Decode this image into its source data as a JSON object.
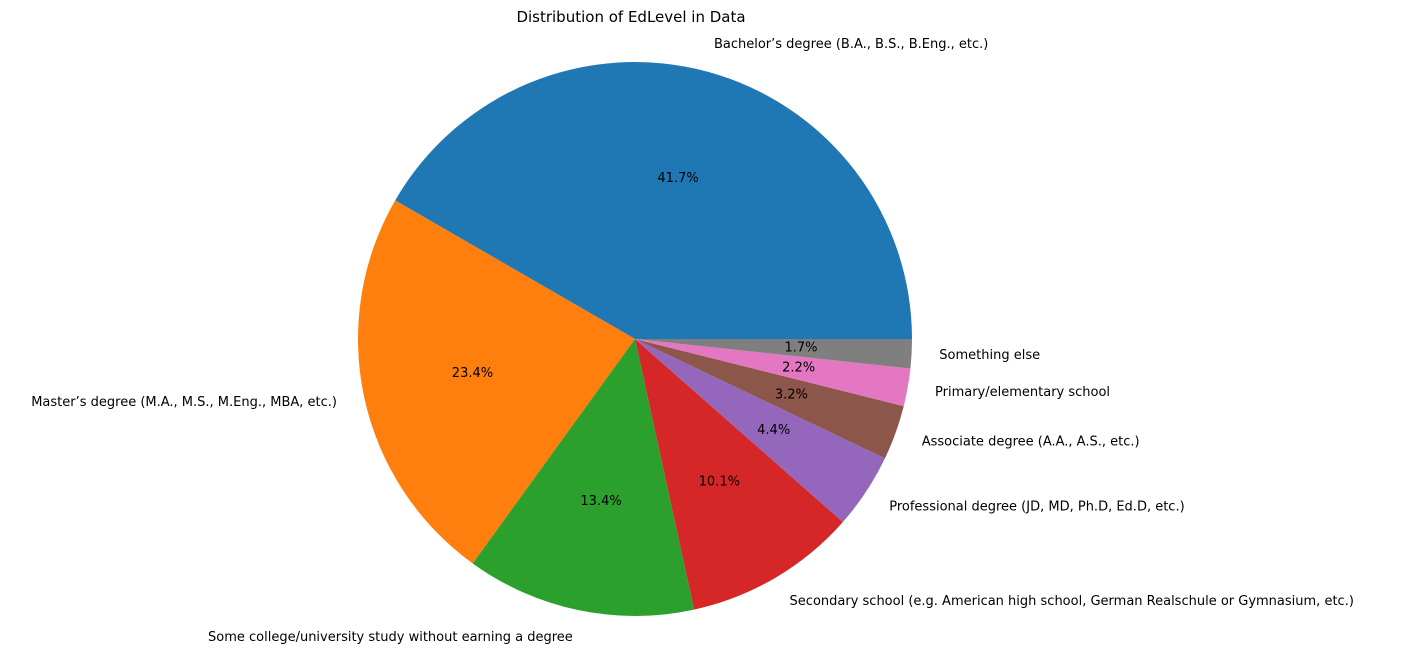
{
  "chart_data": {
    "type": "pie",
    "title": "Distribution of EdLevel in Data",
    "start_angle_deg": 0,
    "direction": "counterclockwise",
    "slices": [
      {
        "label": "Bachelor’s degree (B.A., B.S., B.Eng., etc.)",
        "value": 41.7,
        "pct_label": "41.7%",
        "color": "#1f77b4"
      },
      {
        "label": "Master’s degree (M.A., M.S., M.Eng., MBA, etc.)",
        "value": 23.4,
        "pct_label": "23.4%",
        "color": "#ff7f0e"
      },
      {
        "label": "Some college/university study without earning a degree",
        "value": 13.4,
        "pct_label": "13.4%",
        "color": "#2ca02c"
      },
      {
        "label": "Secondary school (e.g. American high school, German Realschule or Gymnasium, etc.)",
        "value": 10.1,
        "pct_label": "10.1%",
        "color": "#d62728"
      },
      {
        "label": "Professional degree (JD, MD, Ph.D, Ed.D, etc.)",
        "value": 4.4,
        "pct_label": "4.4%",
        "color": "#9467bd"
      },
      {
        "label": "Associate degree (A.A., A.S., etc.)",
        "value": 3.2,
        "pct_label": "3.2%",
        "color": "#8c564b"
      },
      {
        "label": "Primary/elementary school",
        "value": 2.2,
        "pct_label": "2.2%",
        "color": "#e377c2"
      },
      {
        "label": "Something else",
        "value": 1.7,
        "pct_label": "1.7%",
        "color": "#7f7f7f"
      }
    ]
  }
}
